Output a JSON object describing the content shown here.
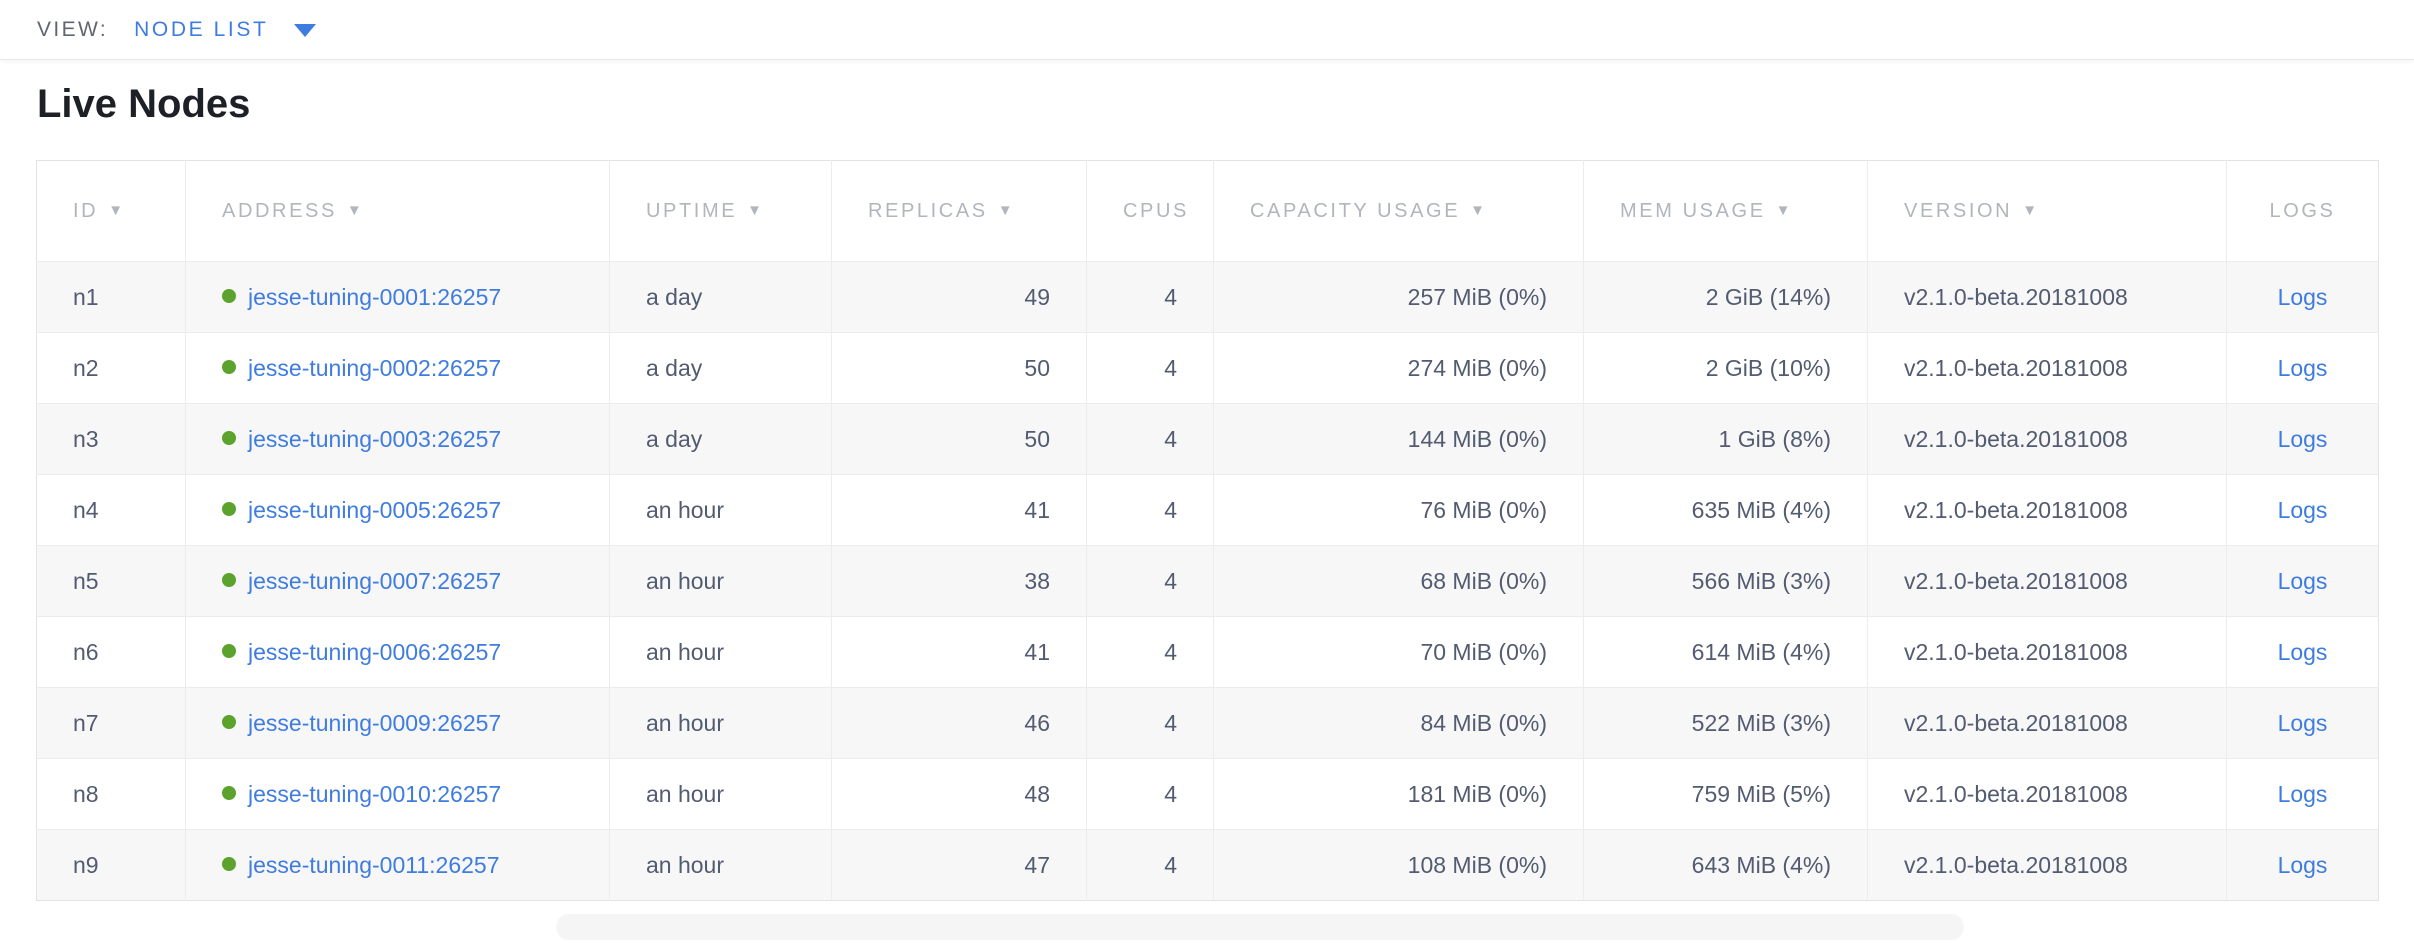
{
  "view_bar": {
    "label": "VIEW:",
    "selected_view": "NODE LIST",
    "dropdown_icon": "caret-down-icon"
  },
  "page": {
    "title": "Live Nodes"
  },
  "table": {
    "sort_icon": "▼",
    "columns": [
      {
        "key": "id",
        "label": "ID",
        "sortable": true
      },
      {
        "key": "address",
        "label": "ADDRESS",
        "sortable": true
      },
      {
        "key": "uptime",
        "label": "UPTIME",
        "sortable": true
      },
      {
        "key": "replicas",
        "label": "REPLICAS",
        "sortable": true,
        "numeric": true
      },
      {
        "key": "cpus",
        "label": "CPUS",
        "sortable": false,
        "numeric": true
      },
      {
        "key": "capacity",
        "label": "CAPACITY USAGE",
        "sortable": true,
        "numeric": true
      },
      {
        "key": "mem",
        "label": "MEM USAGE",
        "sortable": true,
        "numeric": true
      },
      {
        "key": "version",
        "label": "VERSION",
        "sortable": true
      },
      {
        "key": "logs",
        "label": "LOGS",
        "sortable": false
      }
    ],
    "rows": [
      {
        "id": "n1",
        "status": "live",
        "address": "jesse-tuning-0001:26257",
        "uptime": "a day",
        "replicas": "49",
        "cpus": "4",
        "capacity": "257 MiB (0%)",
        "mem": "2 GiB (14%)",
        "version": "v2.1.0-beta.20181008",
        "logs": "Logs"
      },
      {
        "id": "n2",
        "status": "live",
        "address": "jesse-tuning-0002:26257",
        "uptime": "a day",
        "replicas": "50",
        "cpus": "4",
        "capacity": "274 MiB (0%)",
        "mem": "2 GiB (10%)",
        "version": "v2.1.0-beta.20181008",
        "logs": "Logs"
      },
      {
        "id": "n3",
        "status": "live",
        "address": "jesse-tuning-0003:26257",
        "uptime": "a day",
        "replicas": "50",
        "cpus": "4",
        "capacity": "144 MiB (0%)",
        "mem": "1 GiB (8%)",
        "version": "v2.1.0-beta.20181008",
        "logs": "Logs"
      },
      {
        "id": "n4",
        "status": "live",
        "address": "jesse-tuning-0005:26257",
        "uptime": "an hour",
        "replicas": "41",
        "cpus": "4",
        "capacity": "76 MiB (0%)",
        "mem": "635 MiB (4%)",
        "version": "v2.1.0-beta.20181008",
        "logs": "Logs"
      },
      {
        "id": "n5",
        "status": "live",
        "address": "jesse-tuning-0007:26257",
        "uptime": "an hour",
        "replicas": "38",
        "cpus": "4",
        "capacity": "68 MiB (0%)",
        "mem": "566 MiB (3%)",
        "version": "v2.1.0-beta.20181008",
        "logs": "Logs"
      },
      {
        "id": "n6",
        "status": "live",
        "address": "jesse-tuning-0006:26257",
        "uptime": "an hour",
        "replicas": "41",
        "cpus": "4",
        "capacity": "70 MiB (0%)",
        "mem": "614 MiB (4%)",
        "version": "v2.1.0-beta.20181008",
        "logs": "Logs"
      },
      {
        "id": "n7",
        "status": "live",
        "address": "jesse-tuning-0009:26257",
        "uptime": "an hour",
        "replicas": "46",
        "cpus": "4",
        "capacity": "84 MiB (0%)",
        "mem": "522 MiB (3%)",
        "version": "v2.1.0-beta.20181008",
        "logs": "Logs"
      },
      {
        "id": "n8",
        "status": "live",
        "address": "jesse-tuning-0010:26257",
        "uptime": "an hour",
        "replicas": "48",
        "cpus": "4",
        "capacity": "181 MiB (0%)",
        "mem": "759 MiB (5%)",
        "version": "v2.1.0-beta.20181008",
        "logs": "Logs"
      },
      {
        "id": "n9",
        "status": "live",
        "address": "jesse-tuning-0011:26257",
        "uptime": "an hour",
        "replicas": "47",
        "cpus": "4",
        "capacity": "108 MiB (0%)",
        "mem": "643 MiB (4%)",
        "version": "v2.1.0-beta.20181008",
        "logs": "Logs"
      }
    ]
  },
  "colors": {
    "link_blue": "#3f7ce0",
    "live_status_green": "#5ca32e",
    "header_text_gray": "#b1b5bc",
    "body_text": "#525b70"
  }
}
